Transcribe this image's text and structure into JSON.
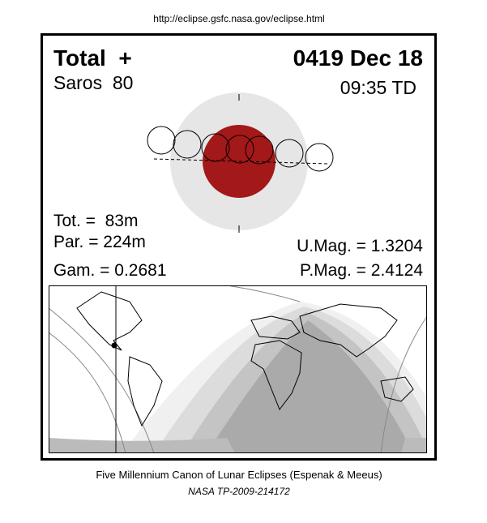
{
  "header": {
    "url": "http://eclipse.gsfc.nasa.gov/eclipse.html"
  },
  "panel": {
    "type": "Total  +",
    "date": "0419 Dec 18",
    "saros": "Saros  80",
    "time": "09:35 TD",
    "total_duration": "Tot. =  83m",
    "partial_duration": "Par. = 224m",
    "gamma": "Gam. = 0.2681",
    "umbral_magnitude": "U.Mag. = 1.3204",
    "penumbral_magnitude": "P.Mag. = 2.4124"
  },
  "footer": {
    "title": "Five Millennium Canon of Lunar Eclipses (Espenak & Meeus)",
    "reference": "NASA TP-2009-214172"
  }
}
